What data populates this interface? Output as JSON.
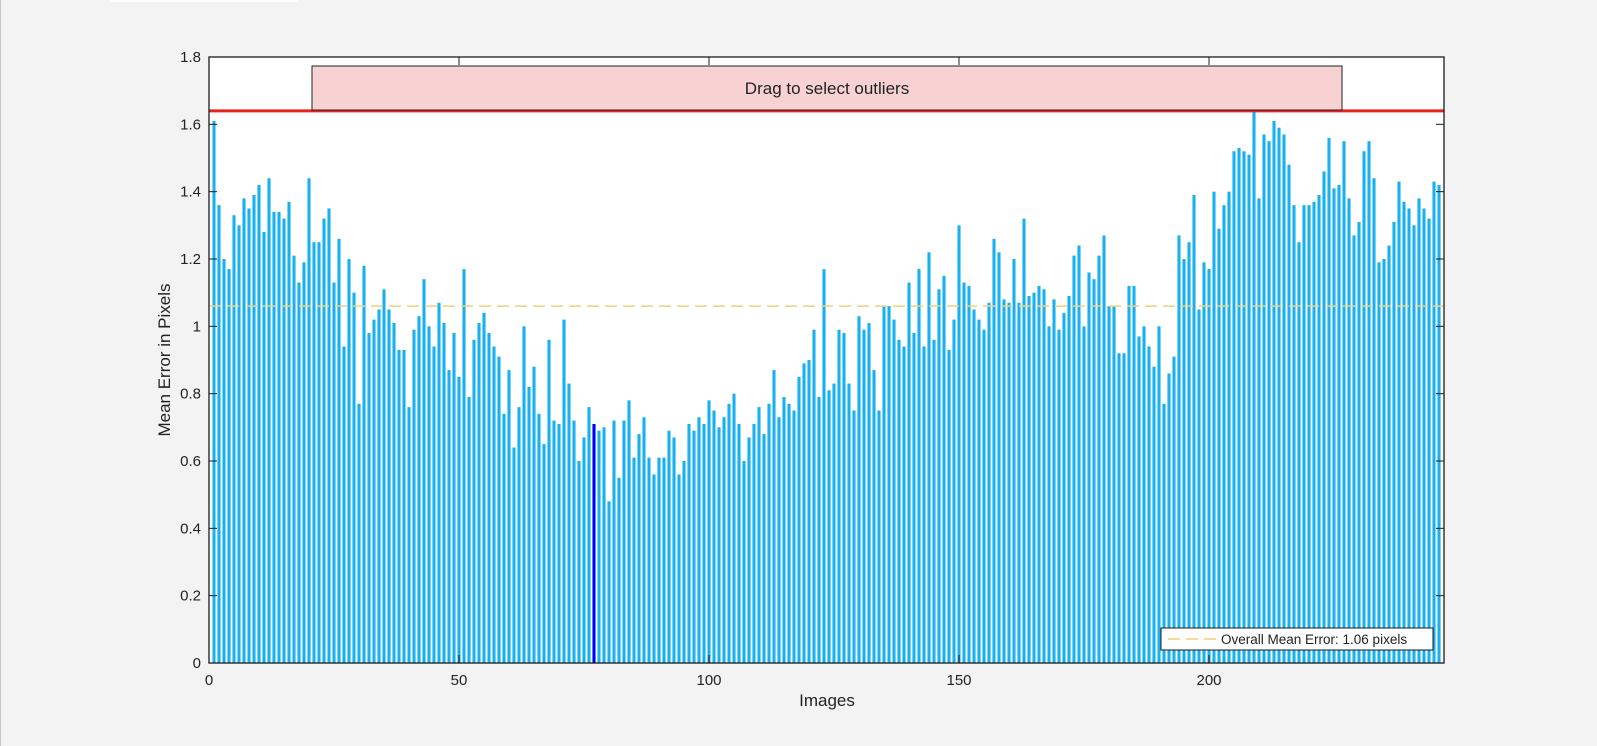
{
  "ui": {
    "banner_text": "Drag to select outliers",
    "selected_image": 77
  },
  "colors": {
    "bar": "#18b1ef",
    "selected_bar": "#0000ff",
    "threshold": "#e8211d",
    "mean_line": "#eed27c",
    "banner_fill": "#f8d2d2",
    "background": "#f3f3f3"
  },
  "chart_data": {
    "type": "bar",
    "title": "",
    "xlabel": "Images",
    "ylabel": "Mean Error in Pixels",
    "xlim": [
      0,
      247
    ],
    "ylim": [
      0,
      1.8
    ],
    "xticks": [
      0,
      50,
      100,
      150,
      200
    ],
    "yticks": [
      0,
      0.2,
      0.4,
      0.6,
      0.8,
      1,
      1.2,
      1.4,
      1.6,
      1.8
    ],
    "xtick_labels": [
      "0",
      "50",
      "100",
      "150",
      "200"
    ],
    "ytick_labels": [
      "0",
      "0.2",
      "0.4",
      "0.6",
      "0.8",
      "1",
      "1.2",
      "1.4",
      "1.6",
      "1.8"
    ],
    "grid": false,
    "outlier_threshold": 1.64,
    "overall_mean": 1.06,
    "selected_index": 77,
    "legend": {
      "position": "bottom-right",
      "entries": [
        "Overall Mean Error: 1.06 pixels"
      ]
    },
    "series": [
      {
        "values": [
          1.61,
          1.36,
          1.2,
          1.17,
          1.33,
          1.3,
          1.38,
          1.35,
          1.39,
          1.42,
          1.28,
          1.44,
          1.34,
          1.34,
          1.32,
          1.37,
          1.21,
          1.13,
          1.19,
          1.44,
          1.25,
          1.25,
          1.32,
          1.35,
          1.13,
          1.26,
          0.94,
          1.2,
          1.1,
          0.77,
          1.18,
          0.98,
          1.02,
          1.05,
          1.11,
          1.05,
          1.01,
          0.93,
          0.93,
          0.76,
          0.99,
          1.03,
          1.14,
          1.0,
          0.94,
          1.07,
          1.01,
          0.87,
          0.98,
          0.85,
          1.17,
          0.79,
          0.96,
          1.01,
          1.04,
          0.98,
          0.94,
          0.91,
          0.74,
          0.87,
          0.64,
          0.76,
          1.0,
          0.82,
          0.88,
          0.74,
          0.65,
          0.96,
          0.72,
          0.71,
          1.02,
          0.83,
          0.72,
          0.6,
          0.67,
          0.76,
          0.71,
          0.69,
          0.7,
          0.48,
          0.72,
          0.55,
          0.72,
          0.78,
          0.61,
          0.68,
          0.73,
          0.61,
          0.56,
          0.61,
          0.61,
          0.69,
          0.67,
          0.56,
          0.6,
          0.71,
          0.69,
          0.73,
          0.71,
          0.78,
          0.75,
          0.7,
          0.73,
          0.77,
          0.8,
          0.71,
          0.6,
          0.67,
          0.71,
          0.76,
          0.68,
          0.77,
          0.87,
          0.73,
          0.79,
          0.77,
          0.75,
          0.85,
          0.89,
          0.9,
          0.99,
          0.79,
          1.17,
          0.81,
          0.83,
          0.99,
          0.98,
          0.83,
          0.75,
          1.03,
          0.99,
          1.01,
          0.87,
          0.75,
          1.06,
          1.06,
          1.02,
          0.96,
          0.94,
          1.13,
          0.98,
          1.17,
          0.94,
          1.22,
          0.96,
          1.11,
          1.15,
          0.93,
          1.02,
          1.3,
          1.13,
          1.12,
          1.05,
          1.02,
          0.99,
          1.07,
          1.26,
          1.22,
          1.08,
          1.07,
          1.2,
          1.07,
          1.32,
          1.09,
          1.1,
          1.12,
          1.11,
          1.0,
          1.08,
          0.99,
          1.04,
          1.09,
          1.21,
          1.24,
          1.0,
          1.16,
          1.14,
          1.21,
          1.27,
          1.06,
          1.06,
          0.92,
          0.92,
          1.12,
          1.12,
          0.97,
          1.0,
          0.94,
          0.88,
          1.0,
          0.77,
          0.86,
          0.91,
          1.27,
          1.2,
          1.25,
          1.39,
          1.05,
          1.19,
          1.17,
          1.4,
          1.29,
          1.36,
          1.4,
          1.52,
          1.53,
          1.52,
          1.51,
          1.64,
          1.38,
          1.57,
          1.55,
          1.61,
          1.59,
          1.57,
          1.48,
          1.36,
          1.25,
          1.36,
          1.36,
          1.37,
          1.39,
          1.46,
          1.56,
          1.41,
          1.42,
          1.55,
          1.38,
          1.27,
          1.31,
          1.52,
          1.55,
          1.44,
          1.19,
          1.2,
          1.24,
          1.31,
          1.43,
          1.37,
          1.35,
          1.3,
          1.38,
          1.35,
          1.32,
          1.43,
          1.42
        ]
      }
    ]
  }
}
